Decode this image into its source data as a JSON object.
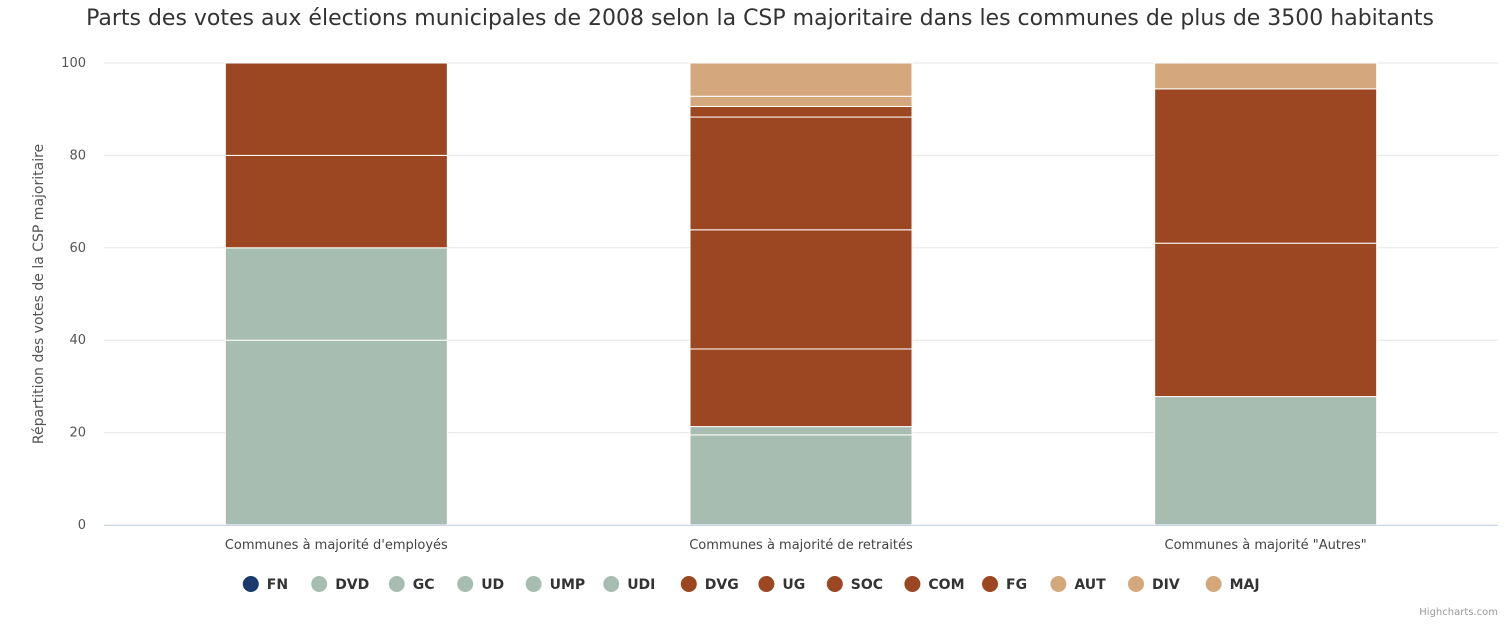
{
  "chart_data": {
    "type": "bar",
    "stacked": true,
    "title": "Parts des votes aux élections municipales de 2008 selon la CSP majoritaire dans les communes de plus de 3500 habitants",
    "ylabel": "Répartition des votes de la CSP majoritaire",
    "xlabel": "",
    "ylim": [
      0,
      100
    ],
    "yticks": [
      0,
      20,
      40,
      60,
      80,
      100
    ],
    "grid": true,
    "legend_position": "bottom",
    "categories": [
      "Communes à majorité d'employés",
      "Communes à majorité de retraités",
      "Communes à majorité \"Autres\""
    ],
    "series": [
      {
        "name": "FN",
        "color": "#1a3a6b",
        "values": [
          0,
          0,
          0
        ]
      },
      {
        "name": "DVD",
        "color": "#a8bdb1",
        "values": [
          40,
          19.5,
          0
        ]
      },
      {
        "name": "GC",
        "color": "#a8bdb1",
        "values": [
          0,
          0,
          0
        ]
      },
      {
        "name": "UD",
        "color": "#a8bdb1",
        "values": [
          0,
          0,
          0
        ]
      },
      {
        "name": "UMP",
        "color": "#a8bdb1",
        "values": [
          20,
          1.8,
          27.8
        ]
      },
      {
        "name": "UDI",
        "color": "#a8bdb1",
        "values": [
          0,
          0,
          0
        ]
      },
      {
        "name": "DVG",
        "color": "#9c4622",
        "values": [
          0,
          16.8,
          0
        ]
      },
      {
        "name": "UG",
        "color": "#9c4622",
        "values": [
          20,
          25.8,
          33.2
        ]
      },
      {
        "name": "SOC",
        "color": "#9c4622",
        "values": [
          20,
          24.4,
          33.4
        ]
      },
      {
        "name": "COM",
        "color": "#9c4622",
        "values": [
          0,
          2.3,
          0
        ]
      },
      {
        "name": "FG",
        "color": "#9c4622",
        "values": [
          0,
          0,
          0
        ]
      },
      {
        "name": "AUT",
        "color": "#d4a77d",
        "values": [
          0,
          2.2,
          0
        ]
      },
      {
        "name": "DIV",
        "color": "#d4a77d",
        "values": [
          0,
          7.2,
          5.6
        ]
      },
      {
        "name": "MAJ",
        "color": "#d4a77d",
        "values": [
          0,
          0,
          0
        ]
      }
    ]
  },
  "credit": "Highcharts.com"
}
